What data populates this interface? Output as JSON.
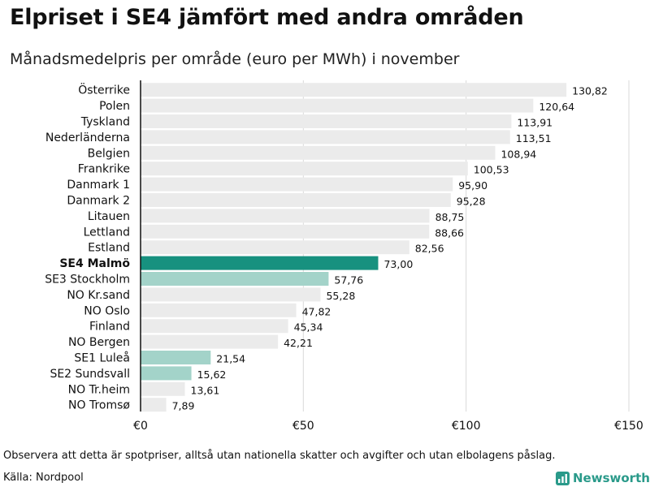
{
  "chart_data": {
    "type": "bar",
    "orientation": "horizontal",
    "title": "Elpriset i SE4 jämfört med andra områden",
    "subtitle": "Månadsmedelpris per område (euro per MWh) i november",
    "categories": [
      "Österrike",
      "Polen",
      "Tyskland",
      "Nederländerna",
      "Belgien",
      "Frankrike",
      "Danmark  1",
      "Danmark  2",
      "Litauen",
      "Lettland",
      "Estland",
      "SE4 Malmö",
      "SE3  Stockholm",
      "NO Kr.sand",
      "NO Oslo",
      "Finland",
      "NO Bergen",
      "SE1  Luleå",
      "SE2  Sundsvall",
      "NO Tr.heim",
      "NO Tromsø"
    ],
    "values": [
      130.82,
      120.64,
      113.91,
      113.51,
      108.94,
      100.53,
      95.9,
      95.28,
      88.75,
      88.66,
      82.56,
      73.0,
      57.76,
      55.28,
      47.82,
      45.34,
      42.21,
      21.54,
      15.62,
      13.61,
      7.89
    ],
    "value_labels": [
      "130,82",
      "120,64",
      "113,91",
      "113,51",
      "108,94",
      "100,53",
      "95,90",
      "95,28",
      "88,75",
      "88,66",
      "82,56",
      "73,00",
      "57,76",
      "55,28",
      "47,82",
      "45,34",
      "42,21",
      "21,54",
      "15,62",
      "13,61",
      "7,89"
    ],
    "highlight": "SE4 Malmö",
    "xlim": [
      0,
      150
    ],
    "x_ticks": [
      0,
      50,
      100,
      150
    ],
    "x_tick_labels": [
      "€0",
      "€50",
      "€100",
      "€150"
    ],
    "xlabel": "",
    "ylabel": "",
    "grid": true
  },
  "colors": {
    "bar_default": "#ebebeb",
    "bar_highlight": "#17917f",
    "bar_sweden": "#a3d3c9",
    "gridline": "#d9d9d9",
    "axis": "#111111",
    "brand": "#2a9a8a"
  },
  "sweden_regions": [
    "SE3  Stockholm",
    "SE1  Luleå",
    "SE2  Sundsvall"
  ],
  "footnote": "Observera att detta är spotpriser, alltså utan nationella skatter och avgifter och utan elbolagens påslag.",
  "source": "Källa: Nordpool",
  "brand": {
    "name": "Newsworthy",
    "icon": "newsworthy-logo-icon"
  }
}
